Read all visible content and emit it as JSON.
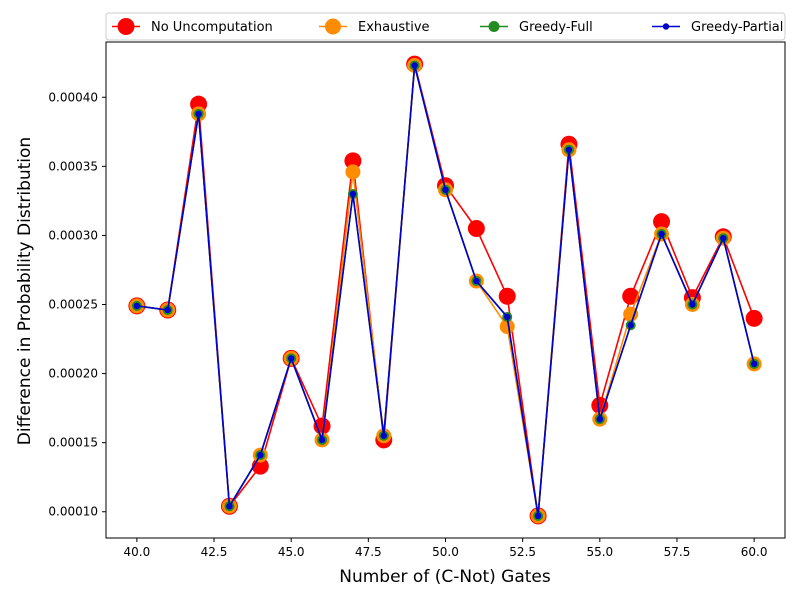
{
  "chart_data": {
    "type": "line",
    "xlabel": "Number of (C-Not) Gates",
    "ylabel": "Difference in Probability Distribution",
    "xlim": [
      39.0,
      61.0
    ],
    "ylim": [
      8.1e-05,
      0.00044
    ],
    "x_ticks": [
      40.0,
      42.5,
      45.0,
      47.5,
      50.0,
      52.5,
      55.0,
      57.5,
      60.0
    ],
    "x_tick_labels": [
      "40.0",
      "42.5",
      "45.0",
      "47.5",
      "50.0",
      "52.5",
      "55.0",
      "57.5",
      "60.0"
    ],
    "y_ticks": [
      0.0001,
      0.00015,
      0.0002,
      0.00025,
      0.0003,
      0.00035,
      0.0004
    ],
    "y_tick_labels": [
      "0.00010",
      "0.00015",
      "0.00020",
      "0.00025",
      "0.00030",
      "0.00035",
      "0.00040"
    ],
    "grid": false,
    "legend_position": "top",
    "x": [
      40,
      41,
      42,
      43,
      44,
      45,
      46,
      47,
      48,
      49,
      50,
      51,
      52,
      53,
      54,
      55,
      56,
      57,
      58,
      59,
      60
    ],
    "series": [
      {
        "name": "No Uncomputation",
        "color": "#ff0000",
        "marker_size": "large",
        "values": [
          0.000249,
          0.000246,
          0.000395,
          0.000104,
          0.000133,
          0.000211,
          0.000162,
          0.000354,
          0.000152,
          0.000424,
          0.000336,
          0.000305,
          0.000256,
          9.7e-05,
          0.000366,
          0.000177,
          0.000256,
          0.00031,
          0.000255,
          0.000299,
          0.00024
        ]
      },
      {
        "name": "Exhaustive",
        "color": "#ff8c00",
        "marker_size": "medium-large",
        "values": [
          0.000249,
          0.000246,
          0.000388,
          0.000104,
          0.000141,
          0.000211,
          0.000152,
          0.000346,
          0.000155,
          0.000423,
          0.000333,
          0.000267,
          0.000234,
          9.7e-05,
          0.000362,
          0.000167,
          0.000243,
          0.000301,
          0.00025,
          0.000298,
          0.000207
        ]
      },
      {
        "name": "Greedy-Full",
        "color": "#228b22",
        "marker_size": "medium",
        "values": [
          0.000249,
          0.000246,
          0.000388,
          0.000104,
          0.000141,
          0.000211,
          0.000152,
          0.00033,
          0.000155,
          0.000423,
          0.000333,
          0.000267,
          0.000241,
          9.7e-05,
          0.000362,
          0.000167,
          0.000235,
          0.000301,
          0.00025,
          0.000298,
          0.000207
        ]
      },
      {
        "name": "Greedy-Partial",
        "color": "#0000cd",
        "marker_size": "small",
        "values": [
          0.000249,
          0.000246,
          0.000388,
          0.000104,
          0.000141,
          0.000211,
          0.000152,
          0.00033,
          0.000155,
          0.000423,
          0.000333,
          0.000267,
          0.000241,
          9.7e-05,
          0.000362,
          0.000167,
          0.000235,
          0.000301,
          0.00025,
          0.000298,
          0.000207
        ]
      }
    ]
  }
}
